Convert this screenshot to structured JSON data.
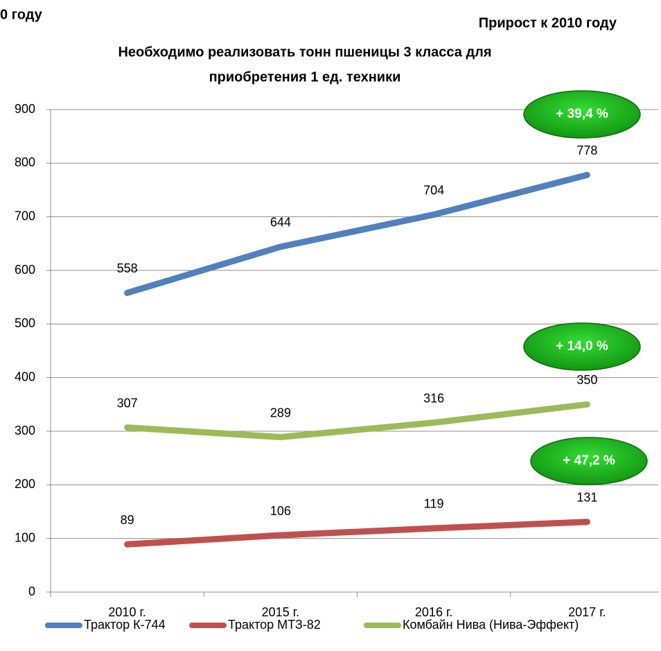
{
  "chart_data": {
    "type": "line",
    "corner_left": "0 году",
    "corner_right": "Прирост к 2010 году",
    "title": [
      "Необходимо реализовать тонн пшеницы 3 класса для",
      "приобретения 1 ед. техники"
    ],
    "categories": [
      "2010 г.",
      "2015 г.",
      "2016 г.",
      "2017 г."
    ],
    "series": [
      {
        "name": "Трактор К-744",
        "color": "#4f81bd",
        "values": [
          558,
          644,
          704,
          778
        ]
      },
      {
        "name": "Трактор МТЗ-82",
        "color": "#c0504d",
        "values": [
          89,
          106,
          119,
          131
        ]
      },
      {
        "name": "Комбайн Нива (Нива-Эффект)",
        "color": "#9bbb59",
        "values": [
          307,
          289,
          316,
          350
        ]
      }
    ],
    "annotations": [
      "+ 39,4 %",
      "+ 14,0 %",
      "+ 47,2 %"
    ],
    "ylim": [
      0,
      900
    ],
    "yticks": [
      0,
      100,
      200,
      300,
      400,
      500,
      600,
      700,
      800,
      900
    ],
    "grid": true,
    "legend": "bottom"
  }
}
